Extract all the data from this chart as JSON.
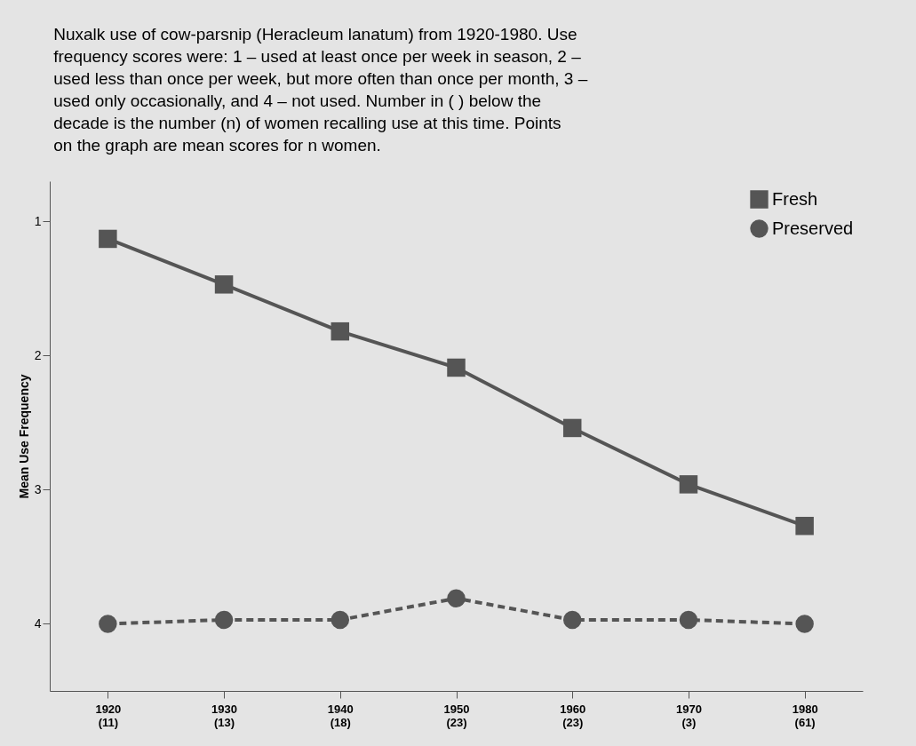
{
  "chart_data": {
    "type": "line",
    "title": "Nuxalk use of cow-parsnip (Heracleum lanatum) from 1920-1980. Use frequency scores were: 1 – used at least once per week in season, 2 – used less than once per week, but more often than once per month, 3 – used only occasionally, and 4 – not used. Number in ( ) below the decade is the number (n) of women recalling use at this time. Points on the graph are mean scores for n women.",
    "ylabel": "Mean Use Frequency",
    "categories": [
      "1920\n(11)",
      "1930\n(13)",
      "1940\n(18)",
      "1950\n(23)",
      "1960\n(23)",
      "1970\n(3)",
      "1980\n(61)"
    ],
    "series": [
      {
        "name": "Fresh",
        "color": "#555555",
        "marker": "square",
        "line_style": "solid",
        "values": [
          1.13,
          1.47,
          1.82,
          2.09,
          2.54,
          2.96,
          3.27
        ]
      },
      {
        "name": "Preserved",
        "color": "#555555",
        "marker": "circle",
        "line_style": "dashed",
        "values": [
          4.0,
          3.97,
          3.97,
          3.81,
          3.97,
          3.97,
          4.0
        ]
      }
    ],
    "ylim": [
      4.5,
      0.7
    ],
    "yticks": [
      1,
      2,
      3,
      4
    ],
    "grid": false,
    "legend": "top right"
  }
}
